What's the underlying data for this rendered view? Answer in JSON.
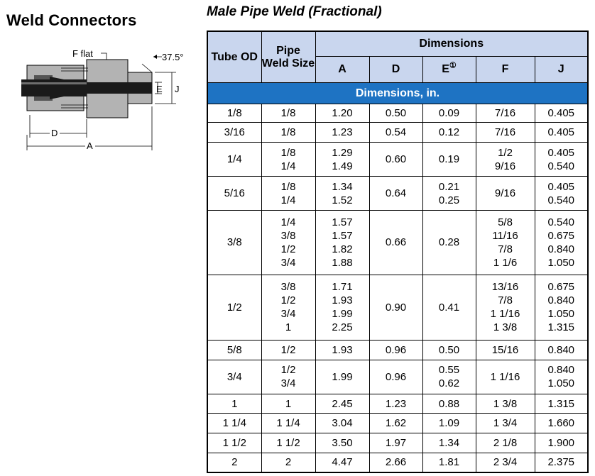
{
  "page_title": "Weld Connectors",
  "table_title": "Male Pipe Weld (Fractional)",
  "diagram": {
    "labels": {
      "f_flat": "F flat",
      "angle": "37.5°",
      "e": "E",
      "j": "J",
      "d": "D",
      "a": "A"
    },
    "colors": {
      "body": "#b3b3b3",
      "tube": "#1a1a1a",
      "dark": "#555555"
    }
  },
  "table": {
    "headers": {
      "tube_od": "Tube OD",
      "pipe_weld_size": "Pipe Weld Size",
      "dimensions": "Dimensions",
      "a": "A",
      "d": "D",
      "e": "E",
      "e_note": "①",
      "f": "F",
      "j": "J"
    },
    "band": "Dimensions, in.",
    "rows": [
      {
        "tube": "1/8",
        "pipe": [
          "1/8"
        ],
        "a": [
          "1.20"
        ],
        "d": "0.50",
        "e": [
          "0.09"
        ],
        "f": [
          "7/16"
        ],
        "j": [
          "0.405"
        ]
      },
      {
        "tube": "3/16",
        "pipe": [
          "1/8"
        ],
        "a": [
          "1.23"
        ],
        "d": "0.54",
        "e": [
          "0.12"
        ],
        "f": [
          "7/16"
        ],
        "j": [
          "0.405"
        ]
      },
      {
        "tube": "1/4",
        "pipe": [
          "1/8",
          "1/4"
        ],
        "a": [
          "1.29",
          "1.49"
        ],
        "d": "0.60",
        "e": [
          "0.19"
        ],
        "f": [
          "1/2",
          "9/16"
        ],
        "j": [
          "0.405",
          "0.540"
        ]
      },
      {
        "tube": "5/16",
        "pipe": [
          "1/8",
          "1/4"
        ],
        "a": [
          "1.34",
          "1.52"
        ],
        "d": "0.64",
        "e": [
          "0.21",
          "0.25"
        ],
        "f": [
          "9/16"
        ],
        "j": [
          "0.405",
          "0.540"
        ]
      },
      {
        "tube": "3/8",
        "pipe": [
          "1/4",
          "3/8",
          "1/2",
          "3/4"
        ],
        "a": [
          "1.57",
          "1.57",
          "1.82",
          "1.88"
        ],
        "d": "0.66",
        "e": [
          "0.28"
        ],
        "f": [
          "5/8",
          "11/16",
          "7/8",
          "1 1/6"
        ],
        "j": [
          "0.540",
          "0.675",
          "0.840",
          "1.050"
        ]
      },
      {
        "tube": "1/2",
        "pipe": [
          "3/8",
          "1/2",
          "3/4",
          "1"
        ],
        "a": [
          "1.71",
          "1.93",
          "1.99",
          "2.25"
        ],
        "d": "0.90",
        "e": [
          "0.41"
        ],
        "f": [
          "13/16",
          "7/8",
          "1 1/16",
          "1 3/8"
        ],
        "j": [
          "0.675",
          "0.840",
          "1.050",
          "1.315"
        ]
      },
      {
        "tube": "5/8",
        "pipe": [
          "1/2"
        ],
        "a": [
          "1.93"
        ],
        "d": "0.96",
        "e": [
          "0.50"
        ],
        "f": [
          "15/16"
        ],
        "j": [
          "0.840"
        ]
      },
      {
        "tube": "3/4",
        "pipe": [
          "1/2",
          "3/4"
        ],
        "a": [
          "1.99"
        ],
        "d": "0.96",
        "e": [
          "0.55",
          "0.62"
        ],
        "f": [
          "1 1/16"
        ],
        "j": [
          "0.840",
          "1.050"
        ]
      },
      {
        "tube": "1",
        "pipe": [
          "1"
        ],
        "a": [
          "2.45"
        ],
        "d": "1.23",
        "e": [
          "0.88"
        ],
        "f": [
          "1 3/8"
        ],
        "j": [
          "1.315"
        ]
      },
      {
        "tube": "1 1/4",
        "pipe": [
          "1 1/4"
        ],
        "a": [
          "3.04"
        ],
        "d": "1.62",
        "e": [
          "1.09"
        ],
        "f": [
          "1 3/4"
        ],
        "j": [
          "1.660"
        ]
      },
      {
        "tube": "1 1/2",
        "pipe": [
          "1 1/2"
        ],
        "a": [
          "3.50"
        ],
        "d": "1.97",
        "e": [
          "1.34"
        ],
        "f": [
          "2 1/8"
        ],
        "j": [
          "1.900"
        ]
      },
      {
        "tube": "2",
        "pipe": [
          "2"
        ],
        "a": [
          "4.47"
        ],
        "d": "2.66",
        "e": [
          "1.81"
        ],
        "f": [
          "2 3/4"
        ],
        "j": [
          "2.375"
        ]
      }
    ]
  }
}
